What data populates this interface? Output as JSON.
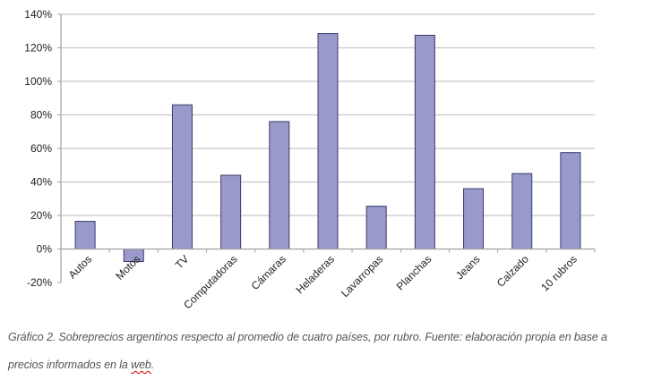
{
  "chart_data": {
    "type": "bar",
    "title": "",
    "xlabel": "",
    "ylabel": "",
    "categories": [
      "Autos",
      "Motos",
      "TV",
      "Computadoras",
      "Cámaras",
      "Heladeras",
      "Lavarropas",
      "Planchas",
      "Jeans",
      "Calzado",
      "10 rubros"
    ],
    "values": [
      16.5,
      -7.5,
      86,
      44,
      76,
      128.5,
      25.5,
      127.5,
      36,
      45,
      57.5
    ],
    "unit": "%",
    "ylim": [
      -20,
      140
    ],
    "yticks": [
      "140%",
      "120%",
      "100%",
      "80%",
      "60%",
      "40%",
      "20%",
      "0%",
      "-20%"
    ],
    "ytick_values": [
      140,
      120,
      100,
      80,
      60,
      40,
      20,
      0,
      -20
    ],
    "grid": true,
    "legend": null,
    "colors": {
      "bar_fill": "#9999cc",
      "bar_stroke": "#3a3a6a",
      "grid": "#c8c8c8",
      "axis": "#a0a0a0"
    }
  },
  "caption": {
    "line1": "Gráfico 2. Sobreprecios argentinos respecto al promedio de cuatro países, por rubro. Fuente: elaboración propia en base a",
    "line2_prefix": "precios informados en la ",
    "line2_flagged": "web",
    "line2_suffix": "."
  }
}
